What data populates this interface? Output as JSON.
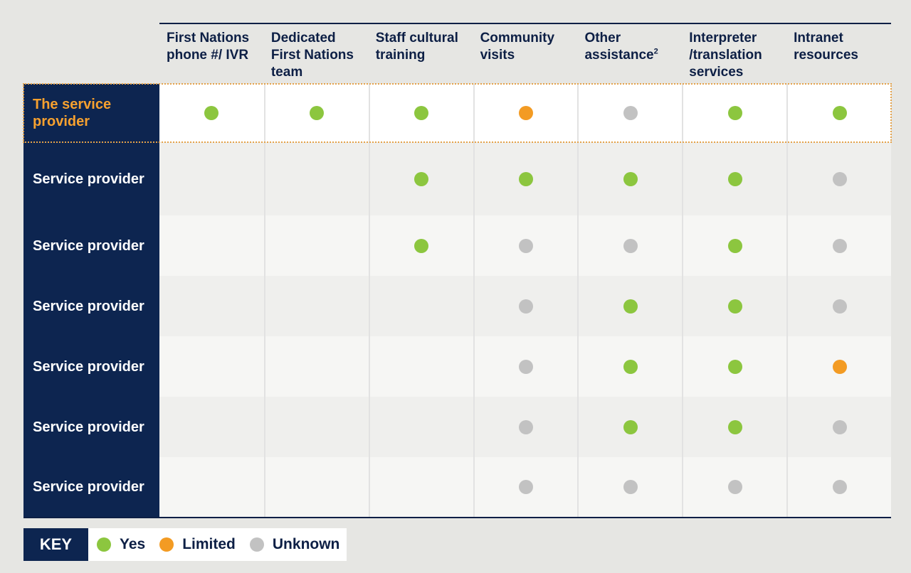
{
  "columns": [
    {
      "label": "First Nations phone #/ IVR",
      "sup": ""
    },
    {
      "label": "Dedicated First Nations team",
      "sup": ""
    },
    {
      "label": "Staff cultural training",
      "sup": ""
    },
    {
      "label": "Community visits",
      "sup": ""
    },
    {
      "label": "Other assistance",
      "sup": "2"
    },
    {
      "label": "Interpreter /translation services",
      "sup": ""
    },
    {
      "label": "Intranet resources",
      "sup": ""
    }
  ],
  "rows": [
    {
      "label": "The service provider",
      "highlight": true,
      "bg": "#ffffff",
      "values": [
        "yes",
        "yes",
        "yes",
        "limited",
        "unknown",
        "yes",
        "yes"
      ]
    },
    {
      "label": "Service provider",
      "highlight": false,
      "bg": "#efefed",
      "values": [
        "",
        "",
        "yes",
        "yes",
        "yes",
        "yes",
        "unknown"
      ]
    },
    {
      "label": "Service provider",
      "highlight": false,
      "bg": "#f6f6f4",
      "values": [
        "",
        "",
        "yes",
        "unknown",
        "unknown",
        "yes",
        "unknown"
      ]
    },
    {
      "label": "Service provider",
      "highlight": false,
      "bg": "#efefed",
      "values": [
        "",
        "",
        "",
        "unknown",
        "yes",
        "yes",
        "unknown"
      ]
    },
    {
      "label": "Service provider",
      "highlight": false,
      "bg": "#f6f6f4",
      "values": [
        "",
        "",
        "",
        "unknown",
        "yes",
        "yes",
        "limited"
      ]
    },
    {
      "label": "Service provider",
      "highlight": false,
      "bg": "#efefed",
      "values": [
        "",
        "",
        "",
        "unknown",
        "yes",
        "yes",
        "unknown"
      ]
    },
    {
      "label": "Service provider",
      "highlight": false,
      "bg": "#f6f6f4",
      "values": [
        "",
        "",
        "",
        "unknown",
        "unknown",
        "unknown",
        "unknown"
      ]
    }
  ],
  "key": {
    "title": "KEY",
    "items": [
      {
        "status": "yes",
        "label": "Yes"
      },
      {
        "status": "limited",
        "label": "Limited"
      },
      {
        "status": "unknown",
        "label": "Unknown"
      }
    ]
  },
  "colors": {
    "navy": "#0d2550",
    "yes": "#8cc63f",
    "limited": "#f39b23",
    "unknown": "#c2c2c2",
    "highlight_text": "#f7a12f"
  }
}
